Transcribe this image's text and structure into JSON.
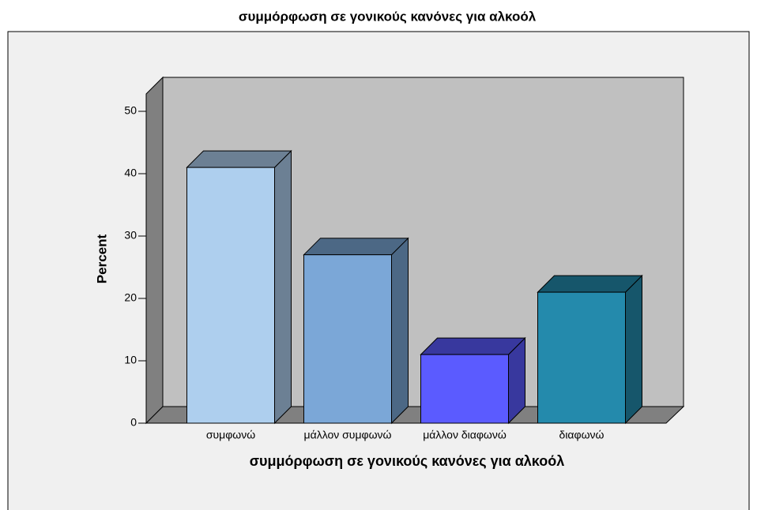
{
  "chart_data": {
    "type": "bar",
    "title": "συμμόρφωση σε γονικούς κανόνες για αλκοόλ",
    "x_label": "συμμόρφωση σε γονικούς κανόνες για αλκοόλ",
    "y_label": "Percent",
    "categories": [
      "συμφωνώ",
      "μάλλον συμφωνώ",
      "μάλλον διαφωνώ",
      "διαφωνώ"
    ],
    "values": [
      41,
      27,
      11,
      21
    ],
    "colors": [
      "#aecfee",
      "#7ba7d7",
      "#5b5bff",
      "#248aac"
    ],
    "ylim": [
      0,
      50
    ],
    "yticks": [
      0,
      10,
      20,
      30,
      40,
      50
    ]
  }
}
